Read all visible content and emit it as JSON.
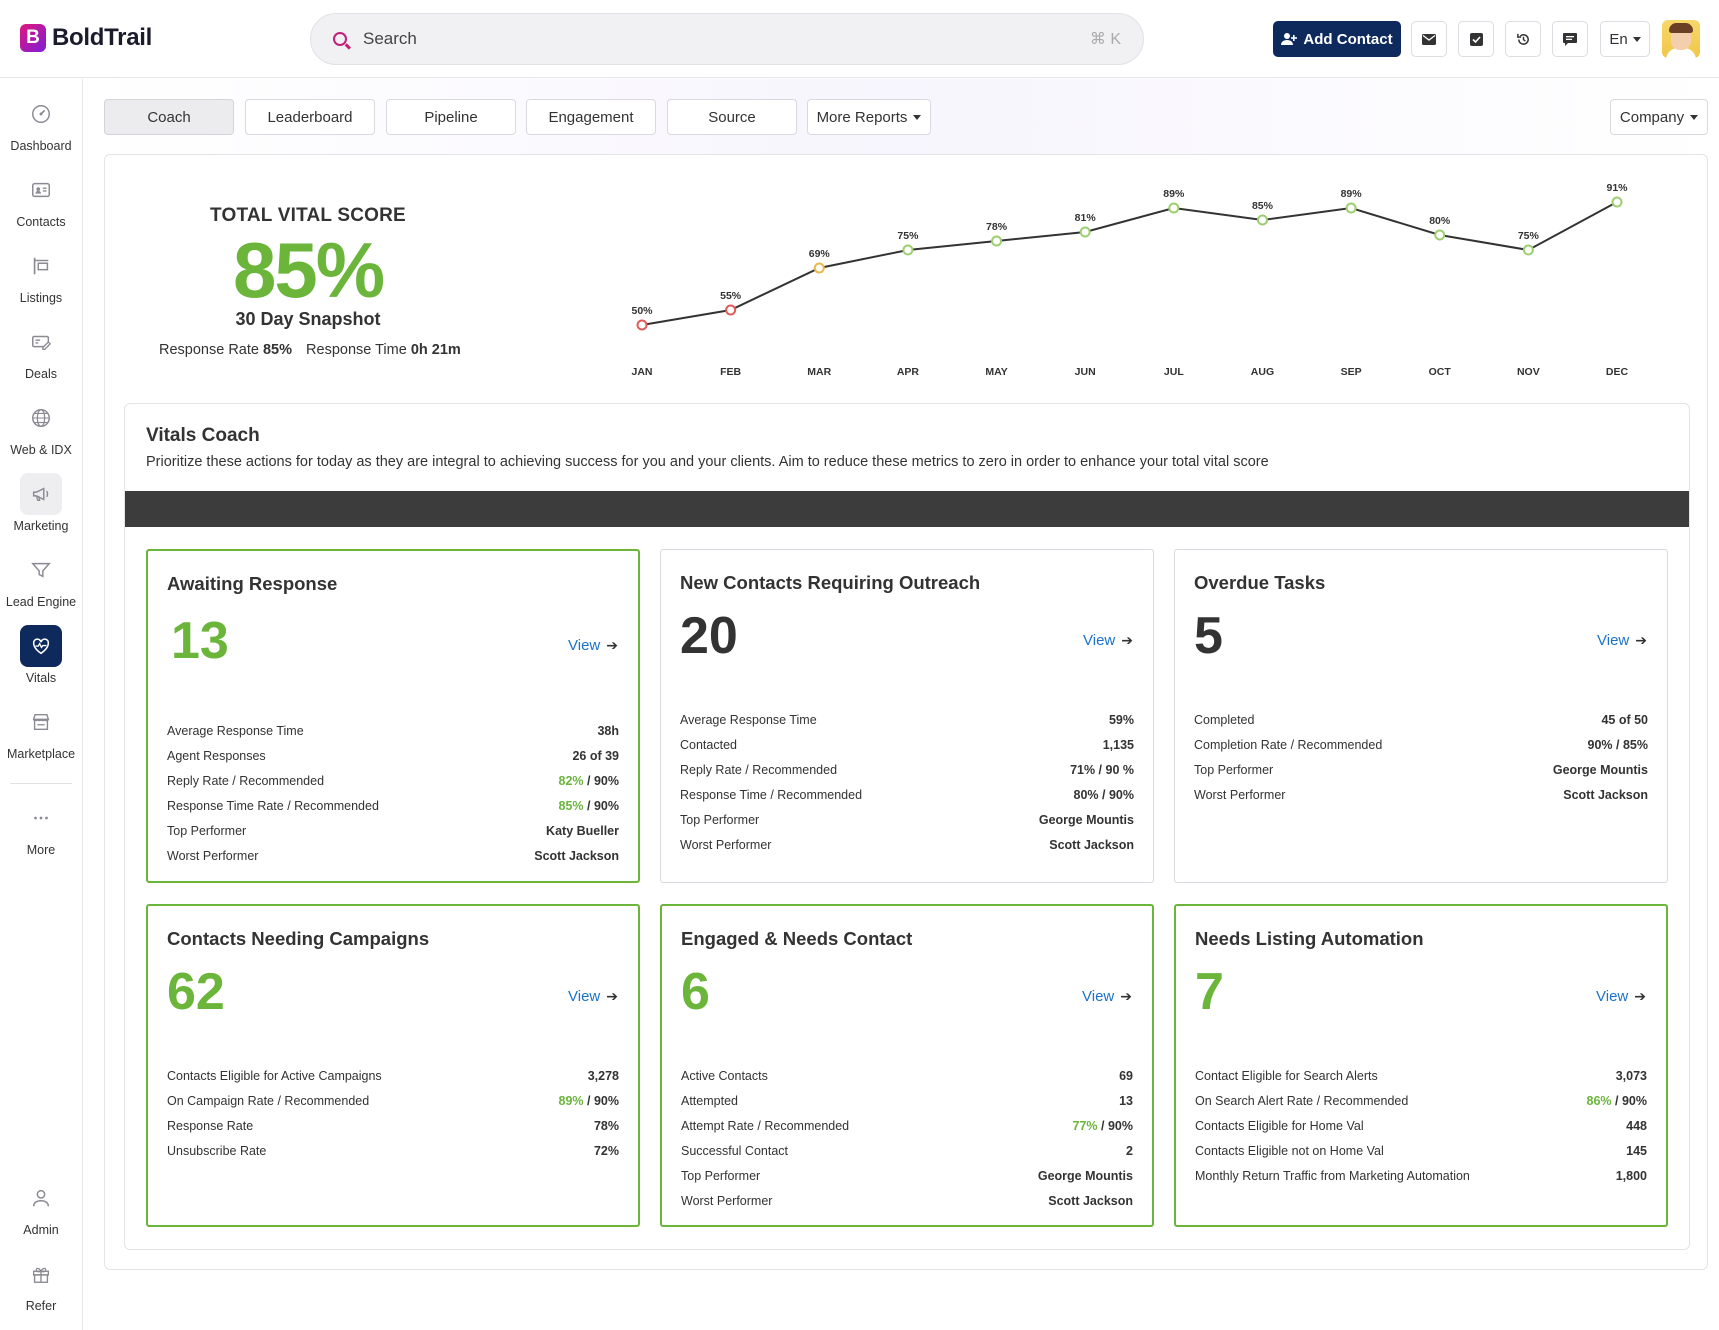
{
  "header": {
    "logo_letter": "B",
    "logo_text": "BoldTrail",
    "search_placeholder": "Search",
    "search_shortcut": "⌘ K",
    "add_contact_label": "Add Contact",
    "lang_label": "En"
  },
  "sidebar": {
    "items": [
      {
        "label": "Dashboard",
        "icon": "gauge-icon"
      },
      {
        "label": "Contacts",
        "icon": "contact-card-icon"
      },
      {
        "label": "Listings",
        "icon": "sign-post-icon"
      },
      {
        "label": "Deals",
        "icon": "money-icon"
      },
      {
        "label": "Web & IDX",
        "icon": "globe-icon"
      },
      {
        "label": "Marketing",
        "icon": "megaphone-icon"
      },
      {
        "label": "Lead Engine",
        "icon": "funnel-icon"
      },
      {
        "label": "Vitals",
        "icon": "heartbeat-icon"
      },
      {
        "label": "Marketplace",
        "icon": "store-icon"
      },
      {
        "label": "More",
        "icon": "ellipsis-icon"
      },
      {
        "label": "Admin",
        "icon": "user-icon"
      },
      {
        "label": "Refer",
        "icon": "gift-icon"
      }
    ]
  },
  "tabs": [
    "Coach",
    "Leaderboard",
    "Pipeline",
    "Engagement",
    "Source"
  ],
  "more_reports_label": "More Reports",
  "company_label": "Company",
  "score": {
    "title": "TOTAL VITAL SCORE",
    "value": "85%",
    "subtitle": "30 Day Snapshot",
    "response_rate_label": "Response Rate",
    "response_rate_value": "85%",
    "response_time_label": "Response Time",
    "response_time_value": "0h 21m"
  },
  "chart_data": {
    "type": "line",
    "categories": [
      "JAN",
      "FEB",
      "MAR",
      "APR",
      "MAY",
      "JUN",
      "JUL",
      "AUG",
      "SEP",
      "OCT",
      "NOV",
      "DEC"
    ],
    "values": [
      50,
      55,
      69,
      75,
      78,
      81,
      89,
      85,
      89,
      80,
      75,
      91
    ],
    "data_labels": [
      "50%",
      "55%",
      "69%",
      "75%",
      "78%",
      "81%",
      "89%",
      "85%",
      "89%",
      "80%",
      "75%",
      "91%"
    ],
    "marker_colors": [
      "#e05a5a",
      "#e05a5a",
      "#e8b94a",
      "#9ccf6f",
      "#9ccf6f",
      "#9ccf6f",
      "#9ccf6f",
      "#9ccf6f",
      "#9ccf6f",
      "#9ccf6f",
      "#9ccf6f",
      "#9ccf6f"
    ],
    "title": "",
    "xlabel": "",
    "ylabel": "",
    "ylim": [
      45,
      95
    ],
    "grid": false,
    "line_color": "#333333"
  },
  "coach": {
    "title": "Vitals Coach",
    "description": "Prioritize these actions for today as they are integral to achieving success for you and your clients. Aim to reduce these metrics to zero in order to enhance your total vital score"
  },
  "cards": [
    {
      "title": "Awaiting Response",
      "value": "13",
      "value_color": "green",
      "border": "green",
      "view_label": "View",
      "rows": [
        {
          "label": "Average Response Time",
          "value": "38h"
        },
        {
          "label": "Agent Responses",
          "value": "26 of 39"
        },
        {
          "label": "Reply Rate / Recommended",
          "value_green": "82%",
          "value_rest": " / 90%"
        },
        {
          "label": "Response Time Rate / Recommended",
          "value_green": "85%",
          "value_rest": " / 90%"
        },
        {
          "label": "Top Performer",
          "value": "Katy Bueller"
        },
        {
          "label": "Worst Performer",
          "value": "Scott Jackson"
        }
      ]
    },
    {
      "title": "New Contacts Requiring Outreach",
      "value": "20",
      "value_color": "dark",
      "border": "grey",
      "view_label": "View",
      "rows": [
        {
          "label": "Average Response Time",
          "value": "59%"
        },
        {
          "label": "Contacted",
          "value": "1,135"
        },
        {
          "label": "Reply Rate / Recommended",
          "value": "71% / 90 %"
        },
        {
          "label": "Response Time / Recommended",
          "value": "80% / 90%"
        },
        {
          "label": "Top Performer",
          "value": "George Mountis"
        },
        {
          "label": "Worst Performer",
          "value": "Scott Jackson"
        }
      ]
    },
    {
      "title": "Overdue Tasks",
      "value": "5",
      "value_color": "dark",
      "border": "grey",
      "view_label": "View",
      "rows": [
        {
          "label": "Completed",
          "value": "45 of 50"
        },
        {
          "label": "Completion Rate / Recommended",
          "value": "90% / 85%"
        },
        {
          "label": "Top Performer",
          "value": "George Mountis"
        },
        {
          "label": "Worst Performer",
          "value": "Scott Jackson"
        }
      ]
    },
    {
      "title": "Contacts Needing Campaigns",
      "value": "62",
      "value_color": "green",
      "border": "green",
      "view_label": "View",
      "rows": [
        {
          "label": "Contacts Eligible for Active Campaigns",
          "value": "3,278"
        },
        {
          "label": "On Campaign Rate / Recommended",
          "value_green": "89%",
          "value_rest": " / 90%"
        },
        {
          "label": "Response Rate",
          "value": "78%"
        },
        {
          "label": "Unsubscribe Rate",
          "value": "72%"
        }
      ]
    },
    {
      "title": "Engaged & Needs Contact",
      "value": "6",
      "value_color": "green",
      "border": "green",
      "view_label": "View",
      "rows": [
        {
          "label": "Active Contacts",
          "value": "69"
        },
        {
          "label": "Attempted",
          "value": "13"
        },
        {
          "label": "Attempt Rate / Recommended",
          "value_green": "77%",
          "value_rest": " / 90%"
        },
        {
          "label": "Successful Contact",
          "value": "2"
        },
        {
          "label": "Top Performer",
          "value": "George Mountis"
        },
        {
          "label": "Worst Performer",
          "value": "Scott Jackson"
        }
      ]
    },
    {
      "title": "Needs Listing Automation",
      "value": "7",
      "value_color": "green",
      "border": "green",
      "view_label": "View",
      "rows": [
        {
          "label": "Contact Eligible for Search Alerts",
          "value": "3,073"
        },
        {
          "label": "On Search Alert Rate / Recommended",
          "value_green": "86%",
          "value_rest": " / 90%"
        },
        {
          "label": "Contacts Eligible for Home Val",
          "value": "448"
        },
        {
          "label": "Contacts Eligible not on Home Val",
          "value": "145"
        },
        {
          "label": "Monthly Return Traffic from Marketing Automation",
          "value": "1,800"
        }
      ]
    }
  ]
}
